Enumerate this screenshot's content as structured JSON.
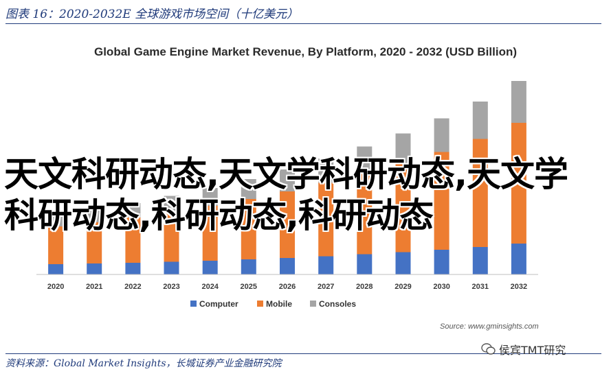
{
  "figure_title": "图表 16：2020-2032E 全球游戏市场空间（十亿美元）",
  "source_note": "Source: www.gminsights.com",
  "overlay_text": "天文科研动态,天文学科研动态,天文学科研动态,科研动态,科研动态",
  "footer_source": "资料来源：Global Market Insights，长城证券产业金融研究院",
  "watermark": "侯宾TMT研究",
  "colors": {
    "computer": "#4472C4",
    "mobile": "#ED7D31",
    "consoles": "#A5A5A5"
  },
  "chart_data": {
    "type": "bar",
    "stacked": true,
    "title": "Global Game Engine Market Revenue, By Platform, 2020 - 2032 (USD Billion)",
    "categories": [
      "2020",
      "2021",
      "2022",
      "2023",
      "2024",
      "2025",
      "2026",
      "2027",
      "2028",
      "2029",
      "2030",
      "2031",
      "2032"
    ],
    "series": [
      {
        "name": "Computer",
        "values": [
          0.3,
          0.32,
          0.34,
          0.37,
          0.4,
          0.44,
          0.48,
          0.53,
          0.59,
          0.65,
          0.72,
          0.8,
          0.9
        ]
      },
      {
        "name": "Mobile",
        "values": [
          1.1,
          1.2,
          1.32,
          1.45,
          1.6,
          1.76,
          1.94,
          2.14,
          2.35,
          2.58,
          2.85,
          3.15,
          3.52
        ]
      },
      {
        "name": "Consoles",
        "values": [
          0.35,
          0.38,
          0.42,
          0.47,
          0.52,
          0.58,
          0.64,
          0.71,
          0.79,
          0.88,
          0.98,
          1.09,
          1.22
        ]
      }
    ],
    "ylim": [
      0,
      5.8
    ],
    "legend_position": "bottom",
    "grid": false
  }
}
